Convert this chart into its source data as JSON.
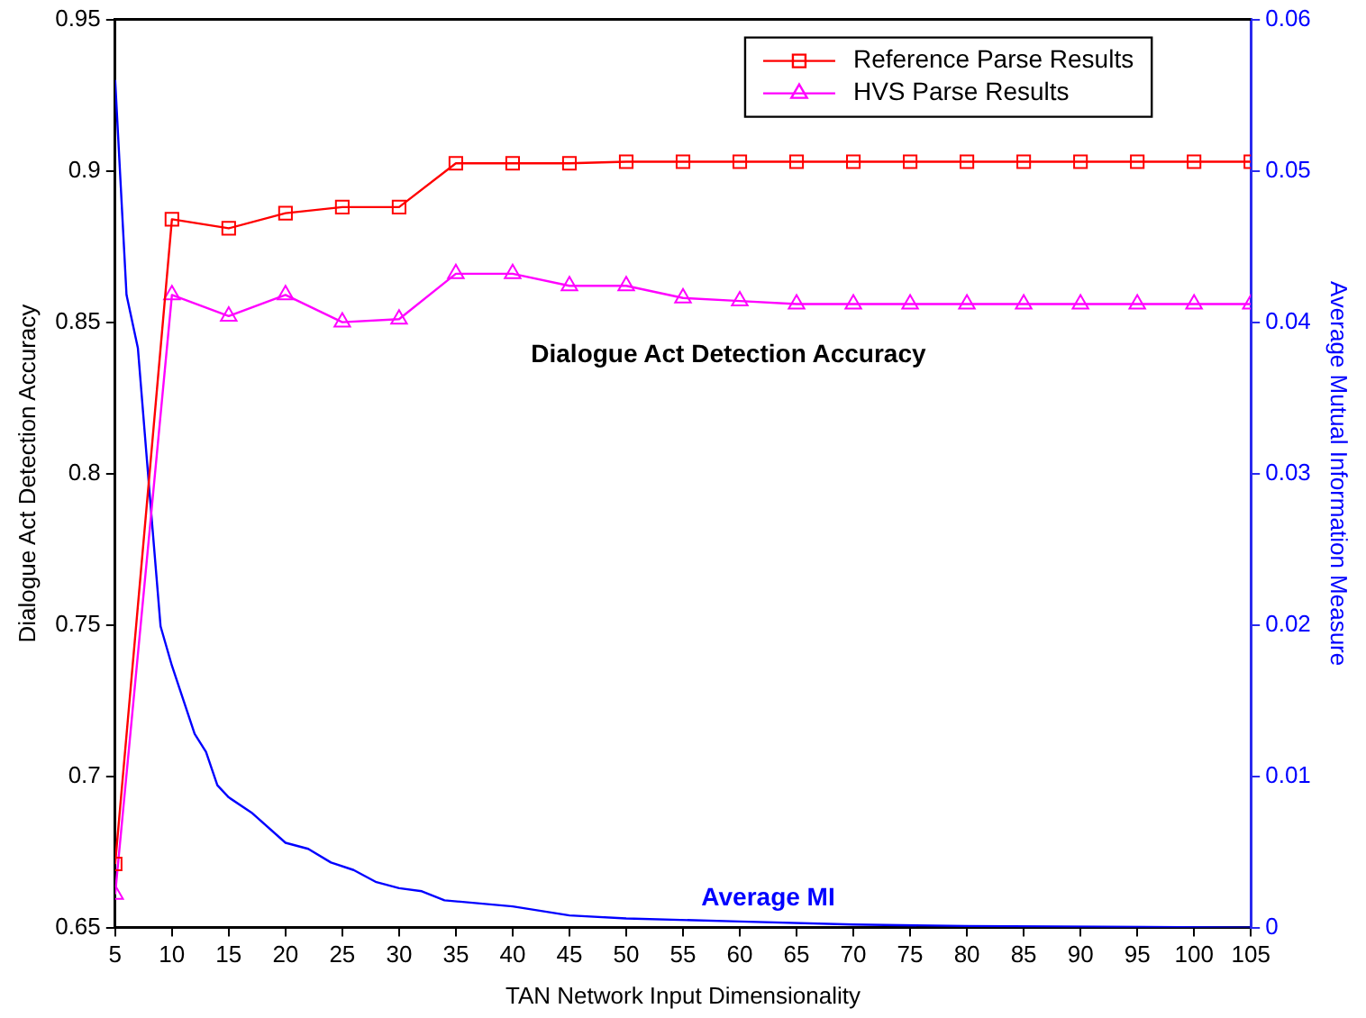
{
  "chart_data": {
    "type": "line",
    "xlabel": "TAN Network Input Dimensionality",
    "ylabel": "Dialogue Act Detection Accuracy",
    "y2label": "Average Mutual Information Measure",
    "xlim": [
      5,
      105
    ],
    "xticks": [
      5,
      10,
      15,
      20,
      25,
      30,
      35,
      40,
      45,
      50,
      55,
      60,
      65,
      70,
      75,
      80,
      85,
      90,
      95,
      100,
      105
    ],
    "ylim": [
      0.65,
      0.95
    ],
    "yticks": [
      0.65,
      0.7,
      0.75,
      0.8,
      0.85,
      0.9,
      0.95
    ],
    "y2lim": [
      0,
      0.06
    ],
    "y2ticks": [
      0,
      0.01,
      0.02,
      0.03,
      0.04,
      0.05,
      0.06
    ],
    "grid": false,
    "legend": "top right",
    "line_style": "solid",
    "annotations": [
      "Dialogue Act Detection Accuracy"
    ],
    "series": [
      {
        "name": "Reference Parse Results",
        "color": "#ff0000",
        "marker": "square",
        "x": [
          5,
          10,
          15,
          20,
          25,
          30,
          35,
          40,
          45,
          50,
          55,
          60,
          65,
          70,
          75,
          80,
          85,
          90,
          95,
          100,
          105
        ],
        "values": [
          0.671,
          0.884,
          0.881,
          0.886,
          0.888,
          0.888,
          0.9025,
          0.9025,
          0.9025,
          0.903,
          0.903,
          0.903,
          0.903,
          0.903,
          0.903,
          0.903,
          0.903,
          0.903,
          0.903,
          0.903,
          0.903
        ]
      },
      {
        "name": "HVS Parse Results",
        "color": "#ff00ff",
        "marker": "triangle",
        "x": [
          5,
          10,
          15,
          20,
          25,
          30,
          35,
          40,
          45,
          50,
          55,
          60,
          65,
          70,
          75,
          80,
          85,
          90,
          95,
          100,
          105
        ],
        "values": [
          0.661,
          0.859,
          0.852,
          0.859,
          0.85,
          0.851,
          0.866,
          0.866,
          0.862,
          0.862,
          0.858,
          0.857,
          0.856,
          0.856,
          0.856,
          0.856,
          0.856,
          0.856,
          0.856,
          0.856,
          0.856
        ]
      },
      {
        "name": "Average MI",
        "color": "#0000ff",
        "marker": "none",
        "axis": "y2",
        "x": [
          5,
          6,
          7,
          8,
          9,
          10,
          12,
          13,
          14,
          15,
          17,
          20,
          22,
          24,
          26,
          28,
          30,
          32,
          34,
          40,
          45,
          50,
          60,
          70,
          80,
          105
        ],
        "values": [
          0.056,
          0.0418,
          0.0383,
          0.029,
          0.0199,
          0.0173,
          0.0128,
          0.0116,
          0.0094,
          0.0086,
          0.0076,
          0.0056,
          0.0052,
          0.0043,
          0.0038,
          0.003,
          0.0026,
          0.0024,
          0.0018,
          0.0014,
          0.0008,
          0.0006,
          0.0004,
          0.0002,
          0.0001,
          0
        ]
      }
    ]
  }
}
